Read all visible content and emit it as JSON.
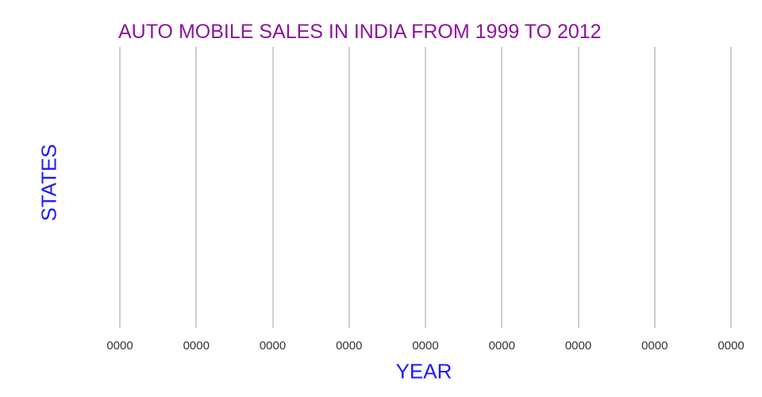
{
  "chart": {
    "title": "AUTO MOBILE SALES IN INDIA FROM 1999 TO 2012",
    "x_axis": {
      "label": "YEAR",
      "tick_labels": [
        "0000",
        "0000",
        "0000",
        "0000",
        "0000",
        "0000",
        "0000",
        "0000",
        "0000"
      ]
    },
    "y_axis": {
      "label": "STATES",
      "tick_labels": []
    },
    "colors": {
      "title": "#8B169B",
      "axis_labels": "#1A1AFF",
      "ticks": "#333333",
      "gridlines": "#CFCFCF",
      "background": "#FFFFFF"
    }
  },
  "chart_data": {
    "type": "bar",
    "title": "AUTO MOBILE SALES IN INDIA FROM 1999 TO 2012",
    "xlabel": "YEAR",
    "ylabel": "STATES",
    "categories": [
      "0000",
      "0000",
      "0000",
      "0000",
      "0000",
      "0000",
      "0000",
      "0000",
      "0000"
    ],
    "values": [],
    "series": [],
    "y_tick_labels": [],
    "legend": "none",
    "grid": "vertical-only",
    "plot_area_empty": true
  }
}
